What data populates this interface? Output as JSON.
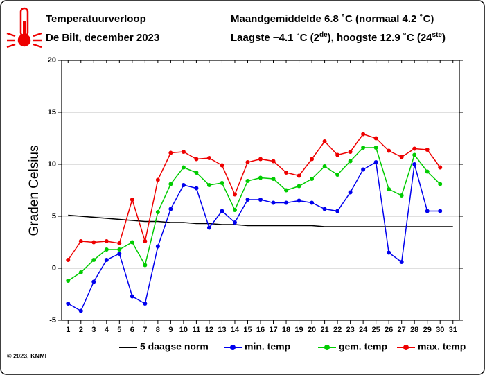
{
  "chart_data": {
    "type": "line",
    "title": "Temperatuurverloop",
    "subtitle": "De Bilt, december 2023",
    "info_line_1": "Maandgemiddelde 6.8 ˚C (normaal 4.2 ˚C)",
    "info_line_2": [
      "Laagste −4.1 ˚C (2",
      "de",
      "), hoogste 12.9 ˚C (24",
      "ste",
      ")"
    ],
    "y_label": "Graden Celsius",
    "credit": "© 2023, KNMI",
    "x": [
      1,
      2,
      3,
      4,
      5,
      6,
      7,
      8,
      9,
      10,
      11,
      12,
      13,
      14,
      15,
      16,
      17,
      18,
      19,
      20,
      21,
      22,
      23,
      24,
      25,
      26,
      27,
      28,
      29,
      30,
      31
    ],
    "xlim": [
      0.5,
      31.5
    ],
    "xticks": [
      1,
      2,
      3,
      4,
      5,
      6,
      7,
      8,
      9,
      10,
      11,
      12,
      13,
      14,
      15,
      16,
      17,
      18,
      19,
      20,
      21,
      22,
      23,
      24,
      25,
      26,
      27,
      28,
      29,
      30,
      31
    ],
    "ylim": [
      -5,
      20
    ],
    "yticks": [
      -5,
      0,
      5,
      10,
      15,
      20
    ],
    "grid": true,
    "series": [
      {
        "name": "5 daagse norm",
        "color": "#000000",
        "markers": false,
        "values": [
          5.1,
          5.0,
          4.9,
          4.8,
          4.7,
          4.6,
          4.5,
          4.5,
          4.4,
          4.4,
          4.3,
          4.3,
          4.2,
          4.2,
          4.1,
          4.1,
          4.1,
          4.1,
          4.1,
          4.1,
          4.0,
          4.0,
          4.0,
          4.0,
          4.0,
          4.0,
          4.0,
          4.0,
          4.0,
          4.0,
          4.0
        ]
      },
      {
        "name": "min. temp",
        "color": "#0000ee",
        "markers": true,
        "values": [
          -3.4,
          -4.1,
          -1.3,
          0.8,
          1.4,
          -2.7,
          -3.4,
          2.1,
          5.7,
          8.0,
          7.7,
          3.9,
          5.5,
          4.4,
          6.6,
          6.6,
          6.3,
          6.3,
          6.5,
          6.3,
          5.7,
          5.5,
          7.3,
          9.5,
          10.2,
          1.5,
          0.6,
          10.0,
          5.5,
          5.5,
          null
        ]
      },
      {
        "name": "gem. temp",
        "color": "#00cc00",
        "markers": true,
        "values": [
          -1.2,
          -0.4,
          0.8,
          1.8,
          1.8,
          2.5,
          0.3,
          5.4,
          8.1,
          9.7,
          9.2,
          8.0,
          8.2,
          5.6,
          8.4,
          8.7,
          8.6,
          7.5,
          7.9,
          8.6,
          9.8,
          9.0,
          10.3,
          11.6,
          11.6,
          7.6,
          7.0,
          10.9,
          9.3,
          8.1,
          null
        ]
      },
      {
        "name": "max. temp",
        "color": "#ee0000",
        "markers": true,
        "values": [
          0.8,
          2.6,
          2.5,
          2.6,
          2.4,
          6.6,
          2.6,
          8.5,
          11.1,
          11.2,
          10.5,
          10.6,
          9.9,
          7.1,
          10.2,
          10.5,
          10.3,
          9.2,
          8.9,
          10.5,
          12.2,
          10.9,
          11.2,
          12.9,
          12.5,
          11.3,
          10.7,
          11.5,
          11.4,
          9.7,
          null
        ]
      }
    ]
  }
}
